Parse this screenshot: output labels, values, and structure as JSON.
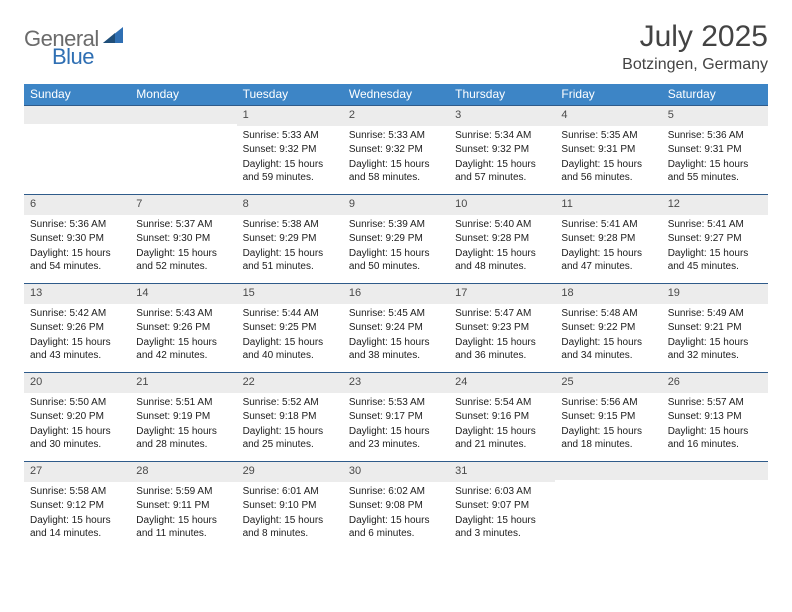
{
  "brand": {
    "part1": "General",
    "part2": "Blue"
  },
  "title": "July 2025",
  "location": "Botzingen, Germany",
  "colors": {
    "header_bg": "#3d85c6",
    "rule": "#2f5b8a",
    "daynum_bg": "#ececec",
    "text": "#202020",
    "brand_gray": "#6b6b6b",
    "brand_blue": "#2f6fb3"
  },
  "weekdays": [
    "Sunday",
    "Monday",
    "Tuesday",
    "Wednesday",
    "Thursday",
    "Friday",
    "Saturday"
  ],
  "first_weekday_index": 2,
  "days": [
    {
      "n": 1,
      "sunrise": "5:33 AM",
      "sunset": "9:32 PM",
      "day_h": 15,
      "day_m": 59
    },
    {
      "n": 2,
      "sunrise": "5:33 AM",
      "sunset": "9:32 PM",
      "day_h": 15,
      "day_m": 58
    },
    {
      "n": 3,
      "sunrise": "5:34 AM",
      "sunset": "9:32 PM",
      "day_h": 15,
      "day_m": 57
    },
    {
      "n": 4,
      "sunrise": "5:35 AM",
      "sunset": "9:31 PM",
      "day_h": 15,
      "day_m": 56
    },
    {
      "n": 5,
      "sunrise": "5:36 AM",
      "sunset": "9:31 PM",
      "day_h": 15,
      "day_m": 55
    },
    {
      "n": 6,
      "sunrise": "5:36 AM",
      "sunset": "9:30 PM",
      "day_h": 15,
      "day_m": 54
    },
    {
      "n": 7,
      "sunrise": "5:37 AM",
      "sunset": "9:30 PM",
      "day_h": 15,
      "day_m": 52
    },
    {
      "n": 8,
      "sunrise": "5:38 AM",
      "sunset": "9:29 PM",
      "day_h": 15,
      "day_m": 51
    },
    {
      "n": 9,
      "sunrise": "5:39 AM",
      "sunset": "9:29 PM",
      "day_h": 15,
      "day_m": 50
    },
    {
      "n": 10,
      "sunrise": "5:40 AM",
      "sunset": "9:28 PM",
      "day_h": 15,
      "day_m": 48
    },
    {
      "n": 11,
      "sunrise": "5:41 AM",
      "sunset": "9:28 PM",
      "day_h": 15,
      "day_m": 47
    },
    {
      "n": 12,
      "sunrise": "5:41 AM",
      "sunset": "9:27 PM",
      "day_h": 15,
      "day_m": 45
    },
    {
      "n": 13,
      "sunrise": "5:42 AM",
      "sunset": "9:26 PM",
      "day_h": 15,
      "day_m": 43
    },
    {
      "n": 14,
      "sunrise": "5:43 AM",
      "sunset": "9:26 PM",
      "day_h": 15,
      "day_m": 42
    },
    {
      "n": 15,
      "sunrise": "5:44 AM",
      "sunset": "9:25 PM",
      "day_h": 15,
      "day_m": 40
    },
    {
      "n": 16,
      "sunrise": "5:45 AM",
      "sunset": "9:24 PM",
      "day_h": 15,
      "day_m": 38
    },
    {
      "n": 17,
      "sunrise": "5:47 AM",
      "sunset": "9:23 PM",
      "day_h": 15,
      "day_m": 36
    },
    {
      "n": 18,
      "sunrise": "5:48 AM",
      "sunset": "9:22 PM",
      "day_h": 15,
      "day_m": 34
    },
    {
      "n": 19,
      "sunrise": "5:49 AM",
      "sunset": "9:21 PM",
      "day_h": 15,
      "day_m": 32
    },
    {
      "n": 20,
      "sunrise": "5:50 AM",
      "sunset": "9:20 PM",
      "day_h": 15,
      "day_m": 30
    },
    {
      "n": 21,
      "sunrise": "5:51 AM",
      "sunset": "9:19 PM",
      "day_h": 15,
      "day_m": 28
    },
    {
      "n": 22,
      "sunrise": "5:52 AM",
      "sunset": "9:18 PM",
      "day_h": 15,
      "day_m": 25
    },
    {
      "n": 23,
      "sunrise": "5:53 AM",
      "sunset": "9:17 PM",
      "day_h": 15,
      "day_m": 23
    },
    {
      "n": 24,
      "sunrise": "5:54 AM",
      "sunset": "9:16 PM",
      "day_h": 15,
      "day_m": 21
    },
    {
      "n": 25,
      "sunrise": "5:56 AM",
      "sunset": "9:15 PM",
      "day_h": 15,
      "day_m": 18
    },
    {
      "n": 26,
      "sunrise": "5:57 AM",
      "sunset": "9:13 PM",
      "day_h": 15,
      "day_m": 16
    },
    {
      "n": 27,
      "sunrise": "5:58 AM",
      "sunset": "9:12 PM",
      "day_h": 15,
      "day_m": 14
    },
    {
      "n": 28,
      "sunrise": "5:59 AM",
      "sunset": "9:11 PM",
      "day_h": 15,
      "day_m": 11
    },
    {
      "n": 29,
      "sunrise": "6:01 AM",
      "sunset": "9:10 PM",
      "day_h": 15,
      "day_m": 8
    },
    {
      "n": 30,
      "sunrise": "6:02 AM",
      "sunset": "9:08 PM",
      "day_h": 15,
      "day_m": 6
    },
    {
      "n": 31,
      "sunrise": "6:03 AM",
      "sunset": "9:07 PM",
      "day_h": 15,
      "day_m": 3
    }
  ],
  "labels": {
    "sunrise": "Sunrise:",
    "sunset": "Sunset:",
    "daylight_prefix": "Daylight:",
    "hours_word": "hours",
    "and_word": "and",
    "minutes_word": "minutes."
  }
}
